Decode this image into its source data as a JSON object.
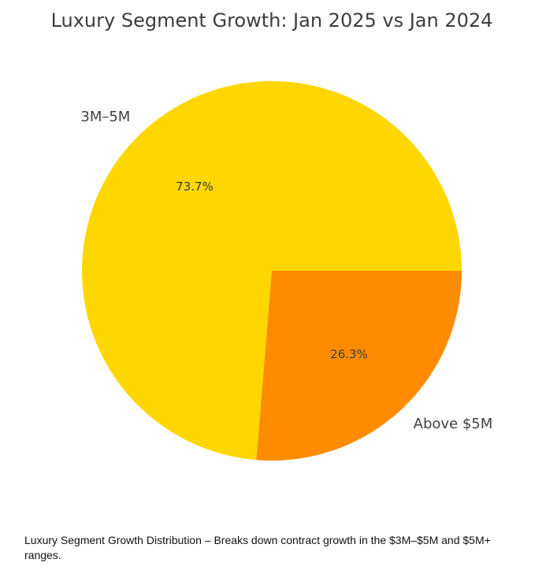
{
  "chart_data": {
    "type": "pie",
    "title": "Luxury Segment Growth: Jan 2025 vs Jan 2024",
    "categories": [
      "3M–5M",
      "Above $5M"
    ],
    "labels": [
      "3M–5M",
      "Above $5M"
    ],
    "values": [
      73.7,
      26.3
    ],
    "pct_labels": [
      "73.7%",
      "26.3%"
    ],
    "colors": [
      "#FFD700",
      "#FF8C00"
    ],
    "start_angle_deg": 0,
    "direction": "counterclockwise",
    "legend": "none"
  },
  "caption": "Luxury Segment Growth Distribution – Breaks       down contract growth in the $3M–$5M and $5M+ ranges."
}
